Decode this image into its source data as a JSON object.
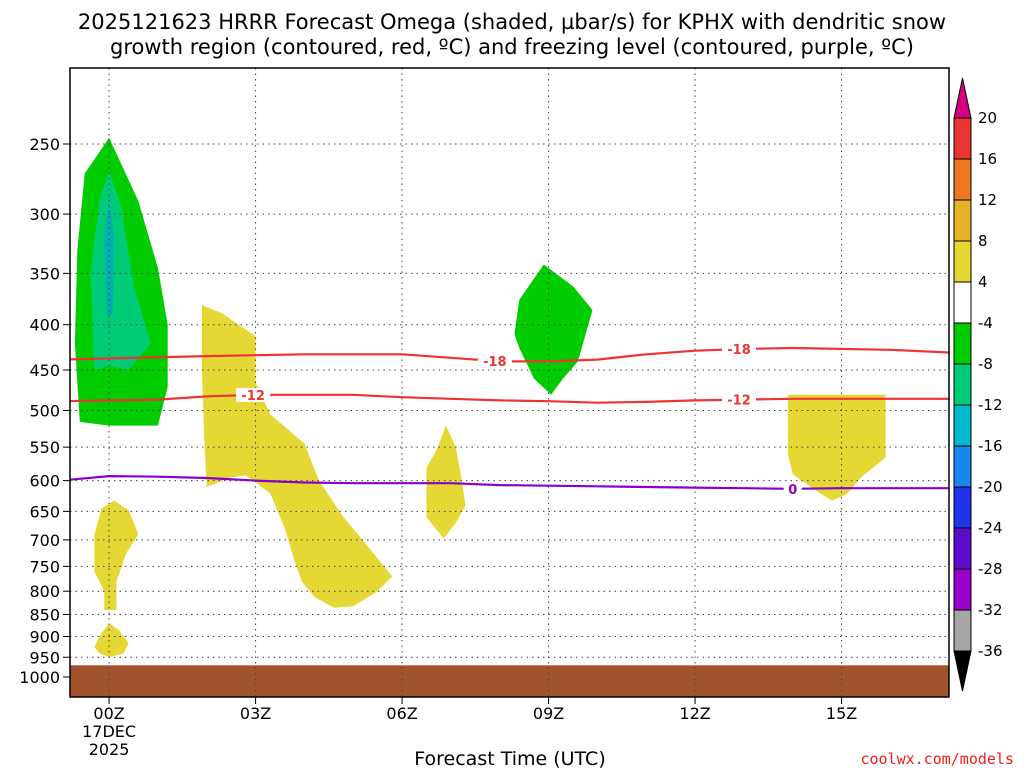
{
  "title_line1": "2025121623 HRRR Forecast Omega (shaded, µbar/s) for KPHX with dendritic snow",
  "title_line2": "growth region (contoured, red, ºC) and freezing level (contoured, purple, ºC)",
  "xlabel": "Forecast Time (UTC)",
  "credit": "coolwx.com/models",
  "chart_data": {
    "type": "time-height cross section",
    "x_unit": "forecast hour (UTC, from 00Z 17DEC 2025)",
    "y_unit": "pressure (mb)",
    "xlim": [
      -0.8,
      17.2
    ],
    "ylim_pressure": [
      1000,
      200
    ],
    "grid": true,
    "x_ticks": [
      {
        "x": 0,
        "label": "00Z",
        "sub1": "17DEC",
        "sub2": "2025"
      },
      {
        "x": 3,
        "label": "03Z"
      },
      {
        "x": 6,
        "label": "06Z"
      },
      {
        "x": 9,
        "label": "09Z"
      },
      {
        "x": 12,
        "label": "12Z"
      },
      {
        "x": 15,
        "label": "15Z"
      }
    ],
    "y_ticks": [
      250,
      300,
      350,
      400,
      450,
      500,
      550,
      600,
      650,
      700,
      750,
      800,
      850,
      900,
      950,
      1000
    ],
    "ground_below_mb": 970,
    "ground_color": "#a0522d",
    "shaded_regions": [
      {
        "range": "-8 to -4",
        "color": "#00cc00",
        "points": [
          [
            -0.6,
            515
          ],
          [
            -0.7,
            420
          ],
          [
            -0.65,
            330
          ],
          [
            -0.5,
            270
          ],
          [
            0,
            246
          ],
          [
            0.6,
            290
          ],
          [
            1,
            345
          ],
          [
            1.2,
            400
          ],
          [
            1.2,
            470
          ],
          [
            1.0,
            520
          ],
          [
            0,
            520
          ]
        ]
      },
      {
        "range": "-12 to -8",
        "color": "#00cc77",
        "points": [
          [
            -0.3,
            450
          ],
          [
            -0.38,
            350
          ],
          [
            -0.2,
            290
          ],
          [
            0,
            268
          ],
          [
            0.25,
            295
          ],
          [
            0.5,
            360
          ],
          [
            0.85,
            420
          ],
          [
            0.4,
            450
          ],
          [
            0,
            445
          ]
        ]
      },
      {
        "range": "-16 to -12",
        "color": "#00b0b0",
        "points": [
          [
            -0.05,
            390
          ],
          [
            -0.1,
            320
          ],
          [
            0,
            285
          ],
          [
            0.1,
            320
          ],
          [
            0.08,
            390
          ]
        ]
      },
      {
        "range": "-8 to -4",
        "color": "#00cc00",
        "points": [
          [
            8.3,
            410
          ],
          [
            8.4,
            375
          ],
          [
            8.9,
            342
          ],
          [
            9.5,
            362
          ],
          [
            9.9,
            385
          ],
          [
            9.6,
            440
          ],
          [
            9.3,
            460
          ],
          [
            9.05,
            480
          ],
          [
            8.7,
            460
          ],
          [
            8.4,
            425
          ]
        ]
      },
      {
        "range": "4 to 8",
        "color": "#e5d834",
        "points": [
          [
            1.9,
            380
          ],
          [
            2.3,
            388
          ],
          [
            3.0,
            412
          ],
          [
            3.0,
            465
          ],
          [
            3.3,
            505
          ],
          [
            4.0,
            545
          ],
          [
            4.3,
            600
          ],
          [
            4.8,
            660
          ],
          [
            5.3,
            712
          ],
          [
            5.8,
            770
          ],
          [
            5.5,
            800
          ],
          [
            5.0,
            832
          ],
          [
            4.6,
            835
          ],
          [
            4.2,
            812
          ],
          [
            3.95,
            780
          ],
          [
            3.8,
            740
          ],
          [
            3.6,
            680
          ],
          [
            3.3,
            620
          ],
          [
            2.8,
            592
          ],
          [
            2.5,
            595
          ],
          [
            2.0,
            610
          ],
          [
            1.95,
            540
          ],
          [
            1.9,
            450
          ]
        ]
      },
      {
        "range": "4 to 8",
        "color": "#e5d834",
        "points": [
          [
            6.5,
            580
          ],
          [
            6.7,
            555
          ],
          [
            6.9,
            520
          ],
          [
            7.1,
            550
          ],
          [
            7.2,
            590
          ],
          [
            7.3,
            640
          ],
          [
            7.1,
            670
          ],
          [
            6.85,
            697
          ],
          [
            6.5,
            660
          ]
        ]
      },
      {
        "range": "4 to 8",
        "color": "#e5d834",
        "points": [
          [
            13.9,
            480
          ],
          [
            15.9,
            480
          ],
          [
            15.9,
            565
          ],
          [
            15.4,
            595
          ],
          [
            15.1,
            622
          ],
          [
            14.8,
            632
          ],
          [
            14.4,
            612
          ],
          [
            14.0,
            590
          ],
          [
            13.9,
            560
          ]
        ]
      },
      {
        "range": "4 to 8",
        "color": "#e5d834",
        "points": [
          [
            -0.3,
            690
          ],
          [
            -0.15,
            645
          ],
          [
            0.1,
            632
          ],
          [
            0.4,
            648
          ],
          [
            0.6,
            690
          ],
          [
            0.35,
            725
          ],
          [
            0.15,
            780
          ],
          [
            0.15,
            840
          ],
          [
            -0.1,
            840
          ],
          [
            -0.1,
            800
          ],
          [
            -0.3,
            760
          ]
        ]
      },
      {
        "range": "4 to 8",
        "color": "#e5d834",
        "points": [
          [
            -0.3,
            925
          ],
          [
            -0.2,
            900
          ],
          [
            0,
            870
          ],
          [
            0.2,
            885
          ],
          [
            0.4,
            915
          ],
          [
            0.3,
            940
          ],
          [
            0,
            950
          ],
          [
            -0.2,
            940
          ]
        ]
      }
    ],
    "contours": [
      {
        "name": "-18",
        "color": "#ee3333",
        "label_at_x": [
          7.9,
          12.9
        ],
        "points": [
          [
            -1,
            438
          ],
          [
            2,
            434
          ],
          [
            4,
            432
          ],
          [
            6,
            432
          ],
          [
            7,
            436
          ],
          [
            8,
            440
          ],
          [
            9,
            440
          ],
          [
            10,
            438
          ],
          [
            11,
            432
          ],
          [
            12,
            428
          ],
          [
            13,
            426
          ],
          [
            14,
            425
          ],
          [
            16,
            427
          ],
          [
            17.2,
            430
          ]
        ]
      },
      {
        "name": "-12",
        "color": "#ee3333",
        "label_at_x": [
          2.95,
          12.9
        ],
        "points": [
          [
            -1,
            488
          ],
          [
            1,
            486
          ],
          [
            2,
            482
          ],
          [
            3,
            480
          ],
          [
            4,
            480
          ],
          [
            5,
            480
          ],
          [
            6,
            483
          ],
          [
            7,
            485
          ],
          [
            8,
            487
          ],
          [
            9,
            488
          ],
          [
            10,
            490
          ],
          [
            11,
            489
          ],
          [
            12,
            487
          ],
          [
            13,
            486
          ],
          [
            14,
            485
          ],
          [
            15,
            485
          ],
          [
            17.2,
            485
          ]
        ]
      },
      {
        "name": "0",
        "color": "#8800cc",
        "label_at_x": [
          14.0
        ],
        "points": [
          [
            -1,
            600
          ],
          [
            0,
            593
          ],
          [
            1,
            594
          ],
          [
            2,
            596
          ],
          [
            3,
            600
          ],
          [
            4,
            603
          ],
          [
            5,
            604
          ],
          [
            6,
            604
          ],
          [
            7,
            604
          ],
          [
            8,
            607
          ],
          [
            9,
            608
          ],
          [
            10,
            609
          ],
          [
            11,
            610
          ],
          [
            12,
            611
          ],
          [
            13,
            612
          ],
          [
            14,
            613
          ],
          [
            15,
            612
          ],
          [
            16,
            612
          ],
          [
            17.2,
            612
          ]
        ]
      }
    ],
    "colorbar": {
      "unit": "µbar/s",
      "min_arrow_color": "#000000",
      "max_arrow_color": "#d40080",
      "bins": [
        {
          "lo": -36,
          "hi": -32,
          "color": "#a6a6a6"
        },
        {
          "lo": -32,
          "hi": -28,
          "color": "#9900cc"
        },
        {
          "lo": -28,
          "hi": -24,
          "color": "#5a0ecc"
        },
        {
          "lo": -24,
          "hi": -20,
          "color": "#2233ee"
        },
        {
          "lo": -20,
          "hi": -16,
          "color": "#1888ee"
        },
        {
          "lo": -16,
          "hi": -12,
          "color": "#00bbcc"
        },
        {
          "lo": -12,
          "hi": -8,
          "color": "#00cc77"
        },
        {
          "lo": -8,
          "hi": -4,
          "color": "#00cc00"
        },
        {
          "lo": -4,
          "hi": 4,
          "color": "#ffffff"
        },
        {
          "lo": 4,
          "hi": 8,
          "color": "#e5d834"
        },
        {
          "lo": 8,
          "hi": 12,
          "color": "#e5b02a"
        },
        {
          "lo": 12,
          "hi": 16,
          "color": "#ee7722"
        },
        {
          "lo": 16,
          "hi": 20,
          "color": "#ee3333"
        }
      ],
      "tick_labels": [
        "-36",
        "-32",
        "-28",
        "-24",
        "-20",
        "-16",
        "-12",
        "-8",
        "-4",
        "4",
        "8",
        "12",
        "16",
        "20"
      ]
    }
  }
}
